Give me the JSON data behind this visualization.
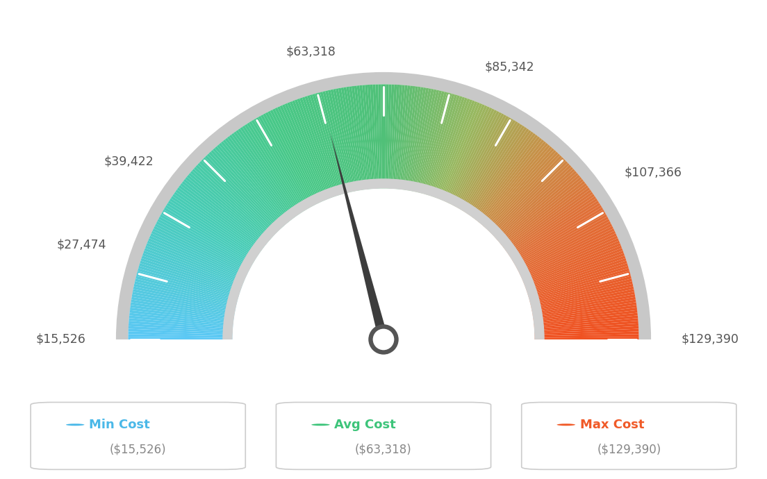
{
  "min_value": 15526,
  "max_value": 129390,
  "avg_value": 63318,
  "labels": [
    "$15,526",
    "$27,474",
    "$39,422",
    "$63,318",
    "$85,342",
    "$107,366",
    "$129,390"
  ],
  "label_values": [
    15526,
    27474,
    39422,
    63318,
    85342,
    107366,
    129390
  ],
  "legend": [
    {
      "label": "Min Cost",
      "value": "($15,526)",
      "color": "#4ab8e8"
    },
    {
      "label": "Avg Cost",
      "value": "($63,318)",
      "color": "#3dc47a"
    },
    {
      "label": "Max Cost",
      "value": "($129,390)",
      "color": "#f05a28"
    }
  ],
  "background_color": "#ffffff",
  "needle_color": "#3d3d3d",
  "outer_ring_color": "#c8c8c8",
  "inner_bg_color": "#e8e8e8"
}
